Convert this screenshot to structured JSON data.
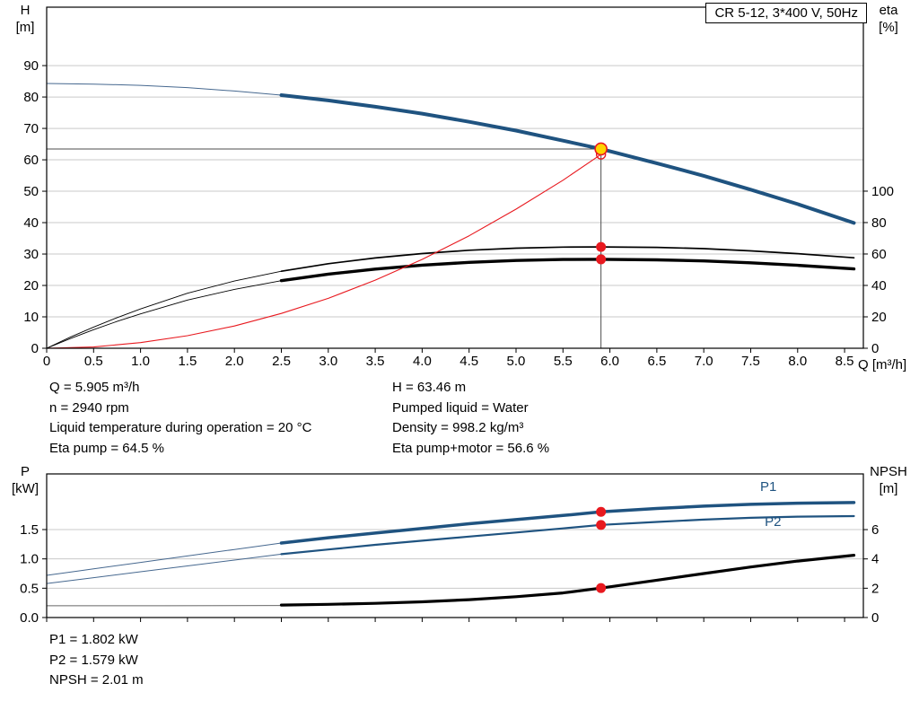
{
  "colors": {
    "curve_blue": "#1f5380",
    "lead_blue": "#46688f",
    "black": "#000000",
    "red": "#e8191f",
    "yellow": "#ffd400",
    "grid": "#c9c9c9",
    "crosshair": "#4d4d4d",
    "lead_gray": "#666666",
    "frame": "#000000"
  },
  "title_box": {
    "label": "CR 5-12, 3*400 V, 50Hz"
  },
  "corner_labels": {
    "h": [
      "H",
      "[m]"
    ],
    "eta": [
      "eta",
      "[%]"
    ],
    "p": [
      "P",
      "[kW]"
    ],
    "npsh": [
      "NPSH",
      "[m]"
    ],
    "q_axis": "Q [m³/h]"
  },
  "annotations": {
    "duty_left": [
      "Q = 5.905 m³/h",
      "n = 2940 rpm",
      "Liquid temperature during operation = 20 °C",
      "Eta pump = 64.5 %"
    ],
    "duty_right": [
      "H = 63.46 m",
      "Pumped liquid = Water",
      "Density = 998.2 kg/m³",
      "Eta pump+motor = 56.6 %"
    ],
    "power": [
      "P1 = 1.802 kW",
      "P2 = 1.579 kW",
      "NPSH = 2.01 m"
    ]
  },
  "chart_data": [
    {
      "id": "hq",
      "type": "line",
      "title": "CR 5-12, 3*400 V, 50Hz",
      "grid": "horizontal",
      "x_axis": {
        "label": "Q [m³/h]",
        "min": 0,
        "max": 8.7,
        "ticks": [
          {
            "v": 0,
            "t": "0"
          },
          {
            "v": 0.5,
            "t": "0.5"
          },
          {
            "v": 1,
            "t": "1.0"
          },
          {
            "v": 1.5,
            "t": "1.5"
          },
          {
            "v": 2,
            "t": "2.0"
          },
          {
            "v": 2.5,
            "t": "2.5"
          },
          {
            "v": 3,
            "t": "3.0"
          },
          {
            "v": 3.5,
            "t": "3.5"
          },
          {
            "v": 4,
            "t": "4.0"
          },
          {
            "v": 4.5,
            "t": "4.5"
          },
          {
            "v": 5,
            "t": "5.0"
          },
          {
            "v": 5.5,
            "t": "5.5"
          },
          {
            "v": 6,
            "t": "6.0"
          },
          {
            "v": 6.5,
            "t": "6.5"
          },
          {
            "v": 7,
            "t": "7.0"
          },
          {
            "v": 7.5,
            "t": "7.5"
          },
          {
            "v": 8,
            "t": "8.0"
          },
          {
            "v": 8.5,
            "t": "8.5"
          }
        ]
      },
      "y_left": {
        "label": "H [m]",
        "min": 0,
        "max": 108.6,
        "ticks": [
          {
            "v": 0,
            "t": "0"
          },
          {
            "v": 10,
            "t": "10"
          },
          {
            "v": 20,
            "t": "20"
          },
          {
            "v": 30,
            "t": "30"
          },
          {
            "v": 40,
            "t": "40"
          },
          {
            "v": 50,
            "t": "50"
          },
          {
            "v": 60,
            "t": "60"
          },
          {
            "v": 70,
            "t": "70"
          },
          {
            "v": 80,
            "t": "80"
          },
          {
            "v": 90,
            "t": "90"
          }
        ]
      },
      "y_right": {
        "label": "eta [%]",
        "min": 0,
        "max": 217.1,
        "ticks": [
          {
            "v": 0,
            "t": "0"
          },
          {
            "v": 20,
            "t": "20"
          },
          {
            "v": 40,
            "t": "40"
          },
          {
            "v": 60,
            "t": "60"
          },
          {
            "v": 80,
            "t": "80"
          },
          {
            "v": 100,
            "t": "100"
          }
        ]
      },
      "duty_point": {
        "q": 5.905,
        "h": 63.46,
        "eta_pump": 64.5,
        "eta_pump_motor": 56.6
      },
      "crosshair": {
        "x": 5.905,
        "v": 63.46
      },
      "series": [
        {
          "name": "h-curve-lead",
          "axis": "left",
          "color": "#46688f",
          "width": 1,
          "points": [
            [
              0,
              84.3
            ],
            [
              0.5,
              84.1
            ],
            [
              1,
              83.7
            ],
            [
              1.5,
              83.0
            ],
            [
              2,
              81.9
            ],
            [
              2.5,
              80.6
            ]
          ]
        },
        {
          "name": "h-curve",
          "axis": "left",
          "color": "#1f5380",
          "width": 4,
          "points": [
            [
              2.5,
              80.6
            ],
            [
              3,
              78.9
            ],
            [
              3.5,
              76.9
            ],
            [
              4,
              74.7
            ],
            [
              4.5,
              72.1
            ],
            [
              5,
              69.3
            ],
            [
              5.5,
              66.1
            ],
            [
              5.905,
              63.46
            ],
            [
              6.5,
              58.9
            ],
            [
              7,
              54.9
            ],
            [
              7.5,
              50.5
            ],
            [
              8,
              45.9
            ],
            [
              8.6,
              39.9
            ]
          ]
        },
        {
          "name": "eta-pump-lead",
          "axis": "right",
          "color": "#000000",
          "width": 0.9,
          "points": [
            [
              0,
              0
            ],
            [
              0.25,
              7
            ],
            [
              0.5,
              13.5
            ],
            [
              0.75,
              19.5
            ],
            [
              1,
              25
            ],
            [
              1.5,
              35
            ],
            [
              2,
              42.8
            ],
            [
              2.5,
              49
            ]
          ]
        },
        {
          "name": "eta-pump-curve",
          "axis": "right",
          "color": "#000000",
          "width": 1.7,
          "points": [
            [
              2.5,
              49
            ],
            [
              3,
              53.8
            ],
            [
              3.5,
              57.5
            ],
            [
              4,
              60.3
            ],
            [
              4.5,
              62.4
            ],
            [
              5,
              63.7
            ],
            [
              5.5,
              64.4
            ],
            [
              5.905,
              64.5
            ],
            [
              6.5,
              64.2
            ],
            [
              7,
              63.4
            ],
            [
              7.5,
              62
            ],
            [
              8,
              60.2
            ],
            [
              8.6,
              57.6
            ]
          ]
        },
        {
          "name": "eta-pump-motor-lead",
          "axis": "right",
          "color": "#000000",
          "width": 0.9,
          "points": [
            [
              0,
              0
            ],
            [
              0.25,
              6.1
            ],
            [
              0.5,
              11.8
            ],
            [
              0.75,
              17.1
            ],
            [
              1,
              21.9
            ],
            [
              1.5,
              30.7
            ],
            [
              2,
              37.5
            ],
            [
              2.5,
              43
            ]
          ]
        },
        {
          "name": "eta-pump-motor-curve",
          "axis": "right",
          "color": "#000000",
          "width": 3.4,
          "points": [
            [
              2.5,
              43
            ],
            [
              3,
              47.2
            ],
            [
              3.5,
              50.4
            ],
            [
              4,
              52.9
            ],
            [
              4.5,
              54.7
            ],
            [
              5,
              55.9
            ],
            [
              5.5,
              56.5
            ],
            [
              5.905,
              56.6
            ],
            [
              6.5,
              56.3
            ],
            [
              7,
              55.6
            ],
            [
              7.5,
              54.4
            ],
            [
              8,
              52.8
            ],
            [
              8.6,
              50.5
            ]
          ]
        },
        {
          "name": "system-curve",
          "axis": "left",
          "color": "#e8191f",
          "width": 1.1,
          "points": [
            [
              0,
              0
            ],
            [
              0.5,
              0.4
            ],
            [
              1,
              1.8
            ],
            [
              1.5,
              4
            ],
            [
              2,
              7.1
            ],
            [
              2.5,
              11.1
            ],
            [
              3,
              15.9
            ],
            [
              3.5,
              21.7
            ],
            [
              4,
              28.3
            ],
            [
              4.5,
              35.8
            ],
            [
              5,
              44.3
            ],
            [
              5.5,
              53.5
            ],
            [
              5.905,
              61.7
            ]
          ]
        }
      ],
      "markers": [
        {
          "name": "system-duty-marker",
          "style": "open",
          "axis": "left",
          "x": 5.905,
          "v": 61.7
        },
        {
          "name": "duty-point-marker",
          "style": "duty",
          "axis": "left",
          "x": 5.905,
          "v": 63.46
        },
        {
          "name": "eta-pump-duty-dot",
          "style": "dot",
          "axis": "right",
          "x": 5.905,
          "v": 64.5
        },
        {
          "name": "eta-pump-motor-duty-dot",
          "style": "dot",
          "axis": "right",
          "x": 5.905,
          "v": 56.6
        }
      ],
      "labels": []
    },
    {
      "id": "pnpsh",
      "type": "line",
      "title": "",
      "grid": "horizontal",
      "x_axis": {
        "label": "",
        "min": 0,
        "max": 8.7,
        "ticks": [
          {
            "v": 0,
            "t": ""
          },
          {
            "v": 0.5,
            "t": ""
          },
          {
            "v": 1,
            "t": ""
          },
          {
            "v": 1.5,
            "t": ""
          },
          {
            "v": 2,
            "t": ""
          },
          {
            "v": 2.5,
            "t": ""
          },
          {
            "v": 3,
            "t": ""
          },
          {
            "v": 3.5,
            "t": ""
          },
          {
            "v": 4,
            "t": ""
          },
          {
            "v": 4.5,
            "t": ""
          },
          {
            "v": 5,
            "t": ""
          },
          {
            "v": 5.5,
            "t": ""
          },
          {
            "v": 6,
            "t": ""
          },
          {
            "v": 6.5,
            "t": ""
          },
          {
            "v": 7,
            "t": ""
          },
          {
            "v": 7.5,
            "t": ""
          },
          {
            "v": 8,
            "t": ""
          },
          {
            "v": 8.5,
            "t": ""
          }
        ]
      },
      "y_left": {
        "label": "P [kW]",
        "min": 0,
        "max": 2.449,
        "ticks": [
          {
            "v": 0,
            "t": "0.0"
          },
          {
            "v": 0.5,
            "t": "0.5"
          },
          {
            "v": 1,
            "t": "1.0"
          },
          {
            "v": 1.5,
            "t": "1.5"
          }
        ]
      },
      "y_right": {
        "label": "NPSH [m]",
        "min": 0,
        "max": 9.8,
        "ticks": [
          {
            "v": 0,
            "t": "0"
          },
          {
            "v": 2,
            "t": "2"
          },
          {
            "v": 4,
            "t": "4"
          },
          {
            "v": 6,
            "t": "6"
          }
        ]
      },
      "duty_point": {
        "q": 5.905,
        "p1_kw": 1.802,
        "p2_kw": 1.579,
        "npsh_m": 2.01
      },
      "series": [
        {
          "name": "p1-lead",
          "axis": "left",
          "color": "#46688f",
          "width": 1,
          "points": [
            [
              0,
              0.72
            ],
            [
              0.5,
              0.83
            ],
            [
              1,
              0.94
            ],
            [
              1.5,
              1.05
            ],
            [
              2,
              1.16
            ],
            [
              2.5,
              1.27
            ]
          ]
        },
        {
          "name": "p1-curve",
          "axis": "left",
          "color": "#1f5380",
          "width": 3.5,
          "points": [
            [
              2.5,
              1.27
            ],
            [
              3,
              1.36
            ],
            [
              3.5,
              1.44
            ],
            [
              4,
              1.52
            ],
            [
              4.5,
              1.6
            ],
            [
              5,
              1.67
            ],
            [
              5.5,
              1.74
            ],
            [
              5.905,
              1.802
            ],
            [
              6.5,
              1.86
            ],
            [
              7,
              1.9
            ],
            [
              7.5,
              1.93
            ],
            [
              8,
              1.95
            ],
            [
              8.6,
              1.96
            ]
          ]
        },
        {
          "name": "p2-lead",
          "axis": "left",
          "color": "#46688f",
          "width": 1,
          "points": [
            [
              0,
              0.58
            ],
            [
              0.5,
              0.68
            ],
            [
              1,
              0.78
            ],
            [
              1.5,
              0.88
            ],
            [
              2,
              0.98
            ],
            [
              2.5,
              1.08
            ]
          ]
        },
        {
          "name": "p2-curve",
          "axis": "left",
          "color": "#1f5380",
          "width": 2.2,
          "points": [
            [
              2.5,
              1.08
            ],
            [
              3,
              1.16
            ],
            [
              3.5,
              1.24
            ],
            [
              4,
              1.31
            ],
            [
              4.5,
              1.38
            ],
            [
              5,
              1.45
            ],
            [
              5.5,
              1.52
            ],
            [
              5.905,
              1.579
            ],
            [
              6.5,
              1.63
            ],
            [
              7,
              1.67
            ],
            [
              7.5,
              1.7
            ],
            [
              8,
              1.72
            ],
            [
              8.6,
              1.73
            ]
          ]
        },
        {
          "name": "npsh-lead",
          "axis": "right",
          "color": "#666666",
          "width": 1,
          "points": [
            [
              0,
              0.8
            ],
            [
              1.25,
              0.8
            ],
            [
              2.5,
              0.82
            ]
          ]
        },
        {
          "name": "npsh-curve",
          "axis": "right",
          "color": "#000000",
          "width": 3.2,
          "points": [
            [
              2.5,
              0.85
            ],
            [
              3,
              0.9
            ],
            [
              3.5,
              0.97
            ],
            [
              4,
              1.07
            ],
            [
              4.5,
              1.22
            ],
            [
              5,
              1.42
            ],
            [
              5.5,
              1.68
            ],
            [
              5.905,
              2.01
            ],
            [
              6.5,
              2.55
            ],
            [
              7,
              3
            ],
            [
              7.5,
              3.45
            ],
            [
              8,
              3.85
            ],
            [
              8.6,
              4.25
            ]
          ]
        }
      ],
      "markers": [
        {
          "name": "p1-duty-dot",
          "style": "dot",
          "axis": "left",
          "x": 5.905,
          "v": 1.802
        },
        {
          "name": "p2-duty-dot",
          "style": "dot",
          "axis": "left",
          "x": 5.905,
          "v": 1.579
        },
        {
          "name": "npsh-duty-dot",
          "style": "dot",
          "axis": "right",
          "x": 5.905,
          "v": 2.01
        }
      ],
      "labels": [
        {
          "name": "p1-curve-label",
          "text": "P1",
          "x": 7.6,
          "v": 2.16,
          "axis": "left",
          "color": "#1f5380"
        },
        {
          "name": "p2-curve-label",
          "text": "P2",
          "x": 7.65,
          "v": 1.56,
          "axis": "left",
          "color": "#1f5380"
        }
      ]
    }
  ]
}
